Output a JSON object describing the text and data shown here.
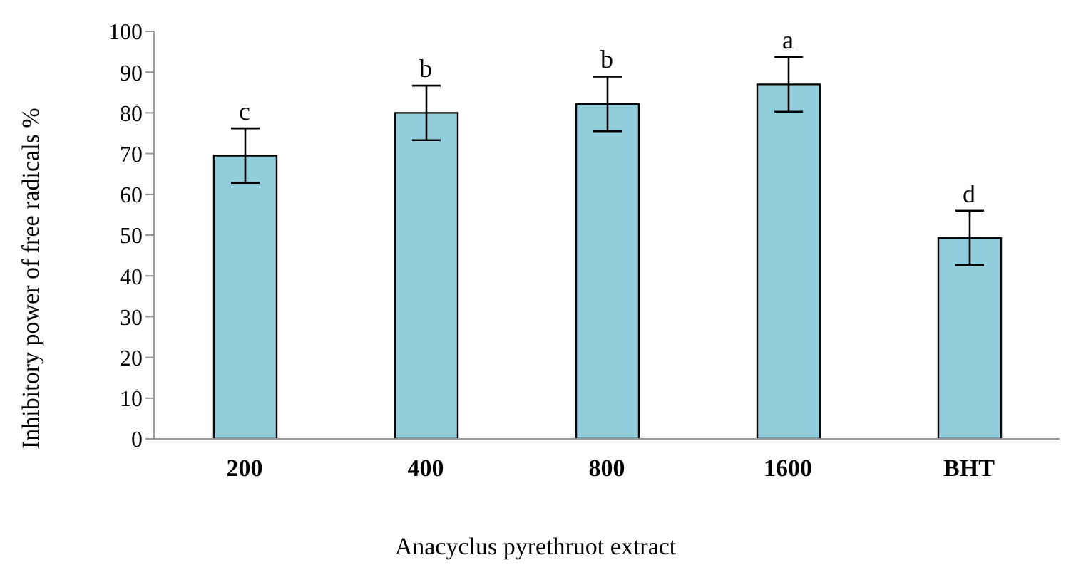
{
  "chart_data": {
    "type": "bar",
    "xlabel": "Anacyclus pyrethruot extract",
    "ylabel": "Inhibitory power of free radicals %",
    "categories": [
      "200",
      "400",
      "800",
      "1600",
      "BHT"
    ],
    "values": [
      69.5,
      80,
      82.2,
      87,
      49.3
    ],
    "errors": [
      6.7,
      6.7,
      6.7,
      6.7,
      6.7
    ],
    "color": "#92cddc",
    "ylim": [
      0,
      100
    ],
    "yticks": [
      0,
      10,
      20,
      30,
      40,
      50,
      60,
      70,
      80,
      90,
      100
    ],
    "grid": false,
    "legend": false,
    "annotations": [
      {
        "text": "c",
        "x": "200",
        "y": 76.2
      },
      {
        "text": "b",
        "x": "400",
        "y": 86.7
      },
      {
        "text": "b",
        "x": "800",
        "y": 88.9
      },
      {
        "text": "a",
        "x": "1600",
        "y": 93.7
      },
      {
        "text": "d",
        "x": "BHT",
        "y": 56
      }
    ]
  }
}
